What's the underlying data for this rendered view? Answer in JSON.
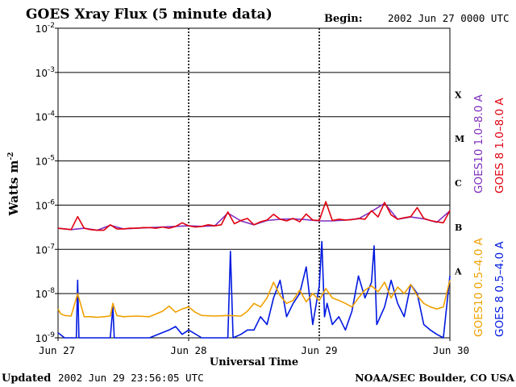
{
  "title": "GOES Xray Flux (5 minute data)",
  "begin_label": "Begin:",
  "begin_value": "2002 Jun 27 0000 UTC",
  "updated_label": "Updated",
  "updated_value": "2002 Jun 29 23:56:05 UTC",
  "footer_right": "NOAA/SEC Boulder, CO USA",
  "colors": {
    "goes10_long": "#7f2fbf",
    "goes8_long": "#e00010",
    "goes10_short": "#f0a000",
    "goes8_short": "#0018e0",
    "axis": "#000000"
  },
  "chart_data": {
    "type": "line",
    "title": "GOES Xray Flux (5 minute data)",
    "xlabel": "Universal Time",
    "ylabel_main": "Watts m",
    "ylabel_sup": "-2",
    "yscale": "log",
    "ylim": [
      1e-09,
      0.01
    ],
    "x_unit": "days since 2002 Jun 27 00:00 UTC",
    "xlim": [
      0,
      3
    ],
    "grid": true,
    "x_ticks": [
      {
        "value": 0,
        "label": "Jun 27"
      },
      {
        "value": 1,
        "label": "Jun 28"
      },
      {
        "value": 2,
        "label": "Jun 29"
      },
      {
        "value": 3,
        "label": "Jun 30"
      }
    ],
    "y_ticks": [
      {
        "exp": -2,
        "base": "10",
        "sup": "-2"
      },
      {
        "exp": -3,
        "base": "10",
        "sup": "-3"
      },
      {
        "exp": -4,
        "base": "10",
        "sup": "-4"
      },
      {
        "exp": -5,
        "base": "10",
        "sup": "-5"
      },
      {
        "exp": -6,
        "base": "10",
        "sup": "-6"
      },
      {
        "exp": -7,
        "base": "10",
        "sup": "-7"
      },
      {
        "exp": -8,
        "base": "10",
        "sup": "-8"
      },
      {
        "exp": -9,
        "base": "10",
        "sup": "-9"
      }
    ],
    "flare_classes": [
      {
        "label": "X",
        "exp": -3.5
      },
      {
        "label": "M",
        "exp": -4.5
      },
      {
        "label": "C",
        "exp": -5.5
      },
      {
        "label": "B",
        "exp": -6.5
      },
      {
        "label": "A",
        "exp": -7.5
      }
    ],
    "legend_right": [
      {
        "label": "GOES10 1.0–8.0 A",
        "color": "#7f2fbf"
      },
      {
        "label": "GOES 8 1.0–8.0 A",
        "color": "#e00010"
      },
      {
        "label": "GOES10 0.5–4.0 A",
        "color": "#f0a000"
      },
      {
        "label": "GOES 8 0.5–4.0 A",
        "color": "#0018e0"
      }
    ],
    "series": [
      {
        "name": "GOES 8 1.0–8.0 A",
        "color": "#e00010",
        "x": [
          0,
          0.05,
          0.1,
          0.15,
          0.2,
          0.25,
          0.3,
          0.35,
          0.4,
          0.45,
          0.5,
          0.55,
          0.6,
          0.65,
          0.7,
          0.75,
          0.8,
          0.85,
          0.9,
          0.95,
          1.0,
          1.05,
          1.1,
          1.15,
          1.2,
          1.25,
          1.3,
          1.35,
          1.4,
          1.45,
          1.5,
          1.55,
          1.6,
          1.65,
          1.7,
          1.75,
          1.8,
          1.85,
          1.9,
          1.95,
          2.0,
          2.05,
          2.1,
          2.15,
          2.2,
          2.25,
          2.3,
          2.35,
          2.4,
          2.45,
          2.5,
          2.55,
          2.6,
          2.65,
          2.7,
          2.75,
          2.8,
          2.85,
          2.9,
          2.95,
          3.0
        ],
        "values": [
          3e-07,
          2.9e-07,
          2.8e-07,
          5.5e-07,
          3e-07,
          2.8e-07,
          2.7e-07,
          2.7e-07,
          3.6e-07,
          2.9e-07,
          2.9e-07,
          3e-07,
          3e-07,
          3.1e-07,
          3.1e-07,
          3e-07,
          3.2e-07,
          3e-07,
          3.3e-07,
          4e-07,
          3.4e-07,
          3.2e-07,
          3.3e-07,
          3.6e-07,
          3.4e-07,
          3.6e-07,
          7e-07,
          3.8e-07,
          4.5e-07,
          5e-07,
          3.6e-07,
          4.2e-07,
          4.6e-07,
          6.2e-07,
          4.8e-07,
          4.4e-07,
          5e-07,
          4.2e-07,
          6.3e-07,
          4.6e-07,
          4.5e-07,
          1.2e-06,
          4.5e-07,
          4.8e-07,
          4.6e-07,
          4.7e-07,
          5e-07,
          4.8e-07,
          7.5e-07,
          5.4e-07,
          1.15e-06,
          6e-07,
          4.8e-07,
          5.2e-07,
          5.5e-07,
          8.8e-07,
          5e-07,
          4.5e-07,
          4.2e-07,
          4e-07,
          7.5e-07
        ]
      },
      {
        "name": "GOES10 1.0–8.0 A",
        "color": "#7f2fbf",
        "x": [
          0,
          0.1,
          0.2,
          0.3,
          0.4,
          0.5,
          0.6,
          0.7,
          0.8,
          0.9,
          1.0,
          1.1,
          1.2,
          1.3,
          1.4,
          1.5,
          1.6,
          1.7,
          1.8,
          1.9,
          2.0,
          2.1,
          2.2,
          2.3,
          2.4,
          2.5,
          2.6,
          2.7,
          2.8,
          2.9,
          3.0
        ],
        "values": [
          3e-07,
          2.8e-07,
          3e-07,
          2.7e-07,
          3.5e-07,
          2.9e-07,
          3e-07,
          3.1e-07,
          3.2e-07,
          3.3e-07,
          3.4e-07,
          3.3e-07,
          3.4e-07,
          6.6e-07,
          4.4e-07,
          3.6e-07,
          4.5e-07,
          4.8e-07,
          4.9e-07,
          4.7e-07,
          4.4e-07,
          4.4e-07,
          4.6e-07,
          4.9e-07,
          7.2e-07,
          1.1e-06,
          4.8e-07,
          5.4e-07,
          4.9e-07,
          4.1e-07,
          7.4e-07
        ]
      },
      {
        "name": "GOES10 0.5–4.0 A",
        "color": "#f0a000",
        "x": [
          0,
          0.02,
          0.05,
          0.1,
          0.15,
          0.2,
          0.25,
          0.3,
          0.35,
          0.4,
          0.42,
          0.45,
          0.5,
          0.6,
          0.7,
          0.8,
          0.85,
          0.9,
          0.95,
          1.0,
          1.05,
          1.1,
          1.2,
          1.3,
          1.4,
          1.45,
          1.5,
          1.55,
          1.6,
          1.65,
          1.7,
          1.75,
          1.8,
          1.85,
          1.9,
          1.95,
          2.0,
          2.05,
          2.1,
          2.15,
          2.2,
          2.25,
          2.3,
          2.35,
          2.4,
          2.45,
          2.5,
          2.55,
          2.6,
          2.65,
          2.7,
          2.75,
          2.8,
          2.85,
          2.9,
          2.95,
          3.0
        ],
        "values": [
          4.5e-09,
          3.5e-09,
          3.2e-09,
          3.1e-09,
          1e-08,
          3e-09,
          3e-09,
          2.9e-09,
          3e-09,
          3.1e-09,
          6e-09,
          3.2e-09,
          3e-09,
          3.1e-09,
          3e-09,
          4e-09,
          5.2e-09,
          3.8e-09,
          4.5e-09,
          5e-09,
          3.8e-09,
          3.2e-09,
          3.1e-09,
          3.2e-09,
          3.1e-09,
          4e-09,
          6e-09,
          5e-09,
          8e-09,
          1.8e-08,
          9e-09,
          6e-09,
          7e-09,
          1.2e-08,
          6.5e-09,
          1e-08,
          7e-09,
          1.3e-08,
          8e-09,
          7e-09,
          6e-09,
          5e-09,
          8e-09,
          1.2e-08,
          1.5e-08,
          1.1e-08,
          1.8e-08,
          8e-09,
          1.4e-08,
          1e-08,
          1.6e-08,
          9e-09,
          6e-09,
          5e-09,
          4.5e-09,
          5e-09,
          2e-08
        ]
      },
      {
        "name": "GOES 8 0.5–4.0 A",
        "color": "#0018e0",
        "x": [
          0,
          0.05,
          0.1,
          0.14,
          0.15,
          0.16,
          0.2,
          0.3,
          0.4,
          0.42,
          0.43,
          0.5,
          0.6,
          0.7,
          0.85,
          0.9,
          0.95,
          1.0,
          1.1,
          1.2,
          1.3,
          1.32,
          1.34,
          1.4,
          1.45,
          1.5,
          1.55,
          1.6,
          1.65,
          1.7,
          1.75,
          1.8,
          1.85,
          1.9,
          1.95,
          2.0,
          2.02,
          2.04,
          2.06,
          2.1,
          2.15,
          2.2,
          2.25,
          2.3,
          2.35,
          2.4,
          2.42,
          2.44,
          2.5,
          2.55,
          2.6,
          2.65,
          2.7,
          2.75,
          2.8,
          2.85,
          2.9,
          2.95,
          3.0
        ],
        "values": [
          1.3e-09,
          1e-09,
          1e-09,
          1e-09,
          2e-08,
          1e-09,
          1e-09,
          1e-09,
          1e-09,
          5e-09,
          1e-09,
          1e-09,
          1e-09,
          1e-09,
          1.5e-09,
          1.8e-09,
          1.2e-09,
          1.5e-09,
          1e-09,
          1e-09,
          1e-09,
          9e-08,
          1e-09,
          1.2e-09,
          1.5e-09,
          1.5e-09,
          3e-09,
          2e-09,
          8e-09,
          2e-08,
          3e-09,
          6e-09,
          1e-08,
          4e-08,
          2e-09,
          1.5e-08,
          1.5e-07,
          3e-09,
          6e-09,
          2e-09,
          3e-09,
          1.5e-09,
          4e-09,
          2.5e-08,
          8e-09,
          1.8e-08,
          1.2e-07,
          2e-09,
          5e-09,
          2e-08,
          6e-09,
          3e-09,
          1.6e-08,
          1e-08,
          2e-09,
          1.5e-09,
          1.2e-09,
          1e-09,
          2.5e-08
        ]
      }
    ]
  }
}
